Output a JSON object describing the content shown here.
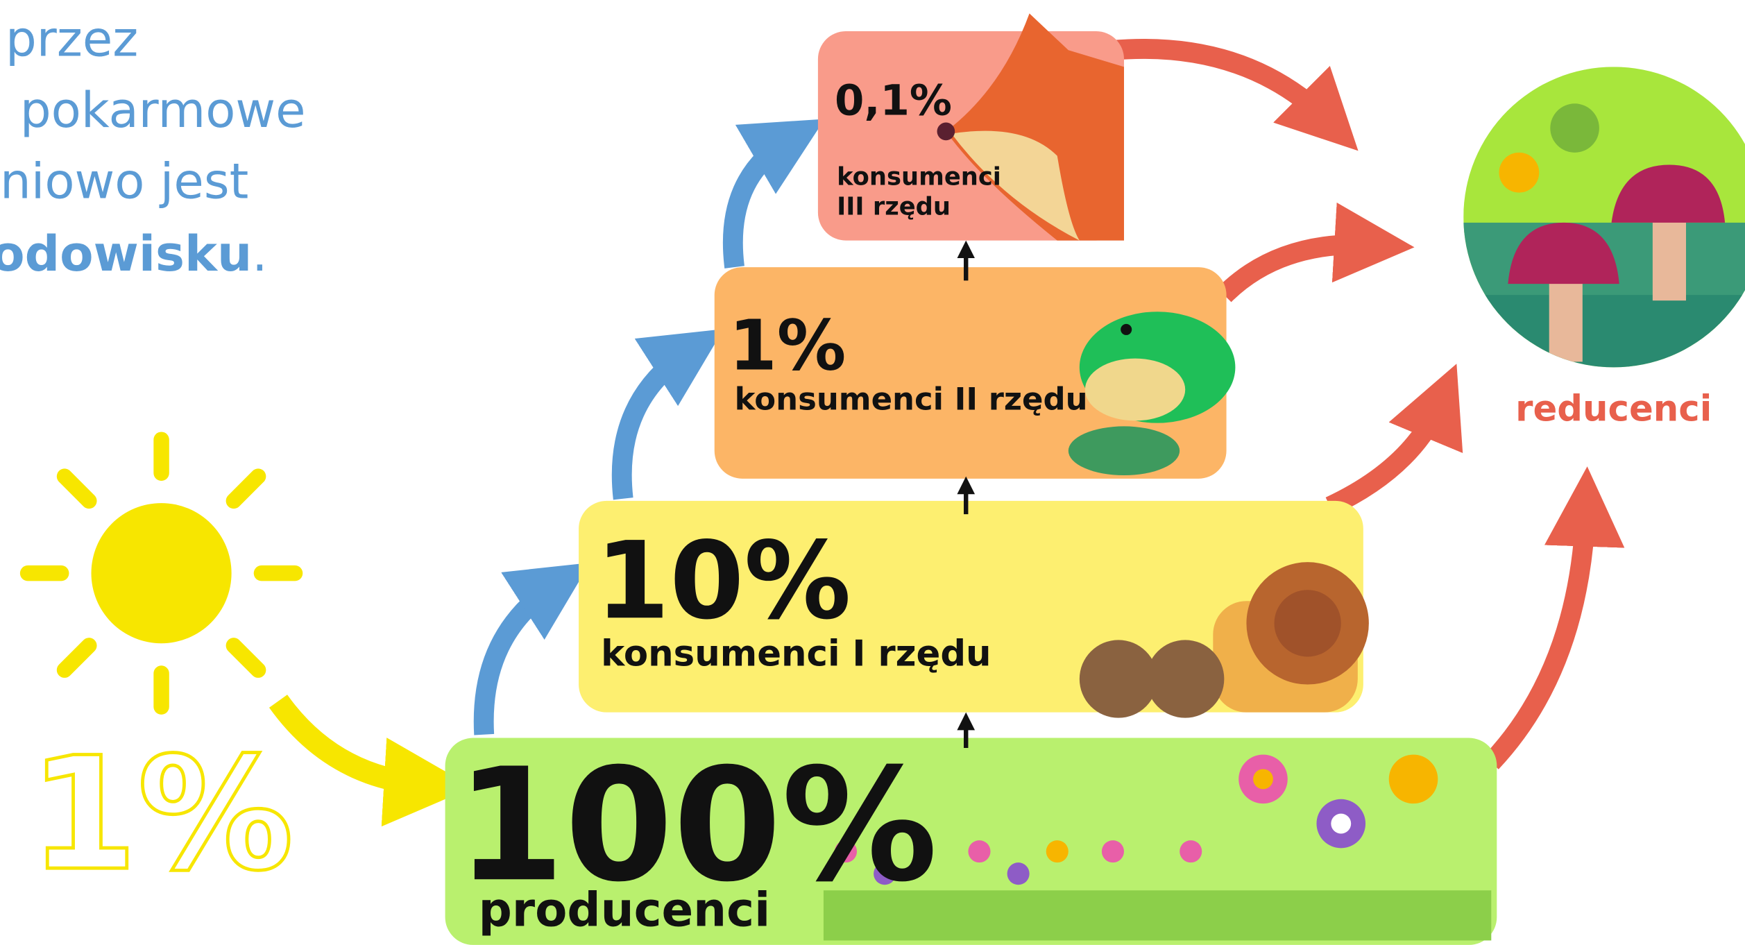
{
  "intro": {
    "lines": [
      "przez",
      "pokarmowe",
      "niowo jest"
    ],
    "last_bold": "odowisku",
    "last_end": "."
  },
  "sun": {
    "label": "1%"
  },
  "levels": [
    {
      "percent": "100%",
      "label": "producenci"
    },
    {
      "percent": "10%",
      "label": "konsumenci I rzędu"
    },
    {
      "percent": "1%",
      "label": "konsumenci II rzędu"
    },
    {
      "percent": "0,1%",
      "label_lines": [
        "konsumenci",
        "III rzędu"
      ]
    }
  ],
  "reducers": {
    "label": "reducenci"
  }
}
